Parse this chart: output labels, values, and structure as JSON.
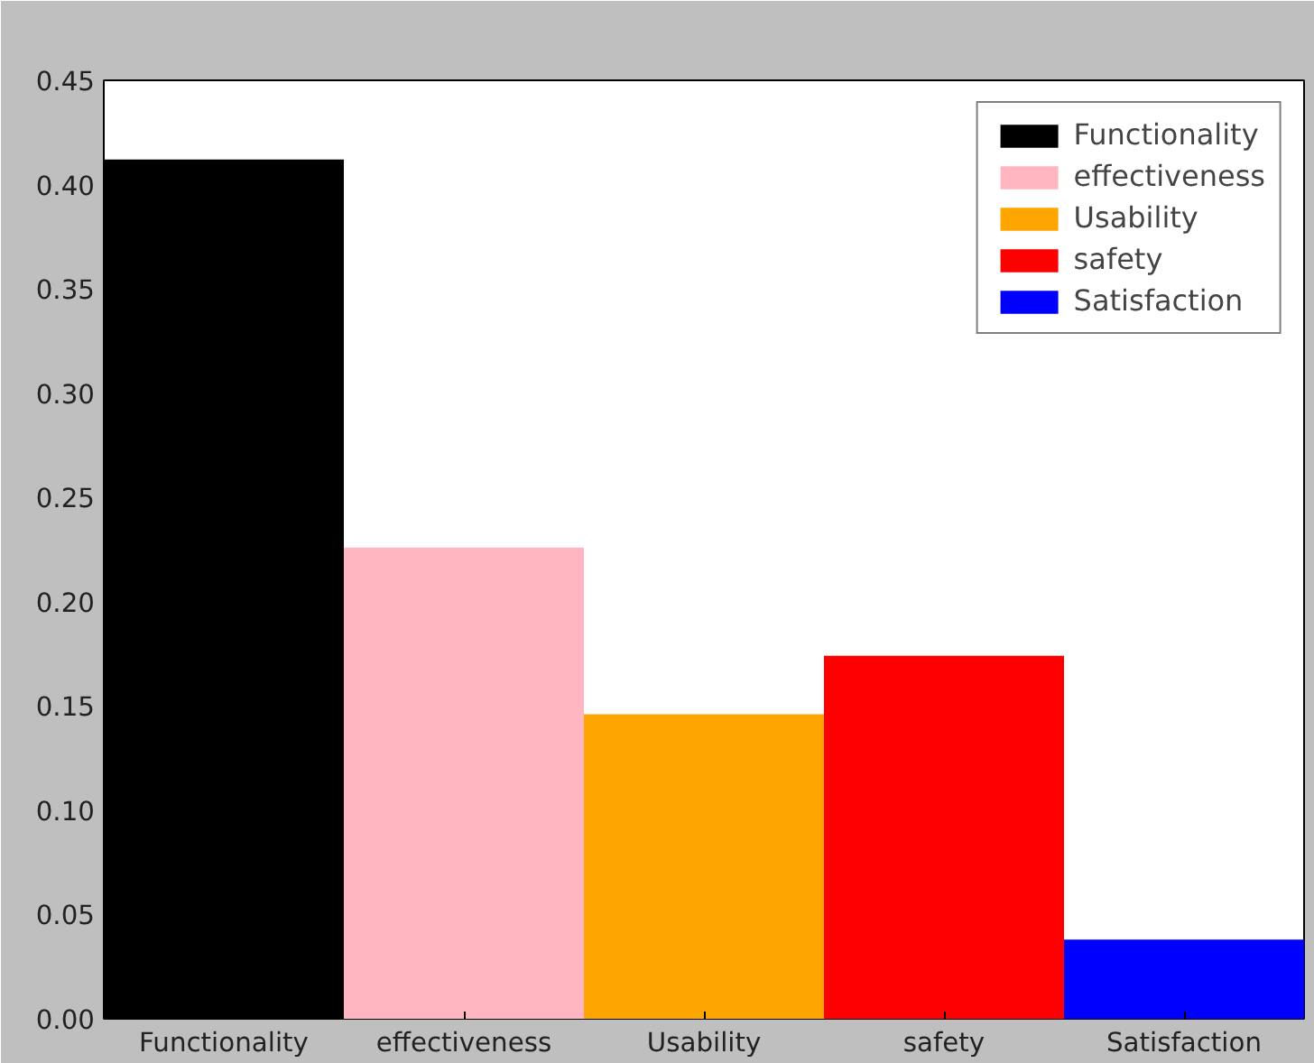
{
  "chart_data": {
    "type": "bar",
    "categories": [
      "Functionality",
      "effectiveness",
      "Usability",
      "safety",
      "Satisfaction"
    ],
    "series": [
      {
        "name": "Functionality",
        "color": "#000000",
        "values": [
          0.412,
          null,
          null,
          null,
          null
        ]
      },
      {
        "name": "effectiveness",
        "color": "#ffb6c1",
        "values": [
          null,
          0.226,
          null,
          null,
          null
        ]
      },
      {
        "name": "Usability",
        "color": "#ffa500",
        "values": [
          null,
          null,
          0.146,
          null,
          null
        ]
      },
      {
        "name": "safety",
        "color": "#ff0000",
        "values": [
          null,
          null,
          null,
          0.174,
          null
        ]
      },
      {
        "name": "Satisfaction",
        "color": "#0000ff",
        "values": [
          null,
          null,
          null,
          null,
          0.038
        ]
      }
    ],
    "ylim": [
      0,
      0.45
    ],
    "yticks": [
      {
        "value": 0,
        "label": "0.00"
      },
      0.05,
      {
        "value": 0.1,
        "label": "0.10"
      },
      0.15,
      {
        "value": 0.2,
        "label": "0.20"
      },
      0.25,
      {
        "value": 0.3,
        "label": "0.30"
      },
      0.35,
      {
        "value": 0.4,
        "label": "0.40"
      },
      0.45
    ],
    "grid": false,
    "legend": "top right"
  }
}
